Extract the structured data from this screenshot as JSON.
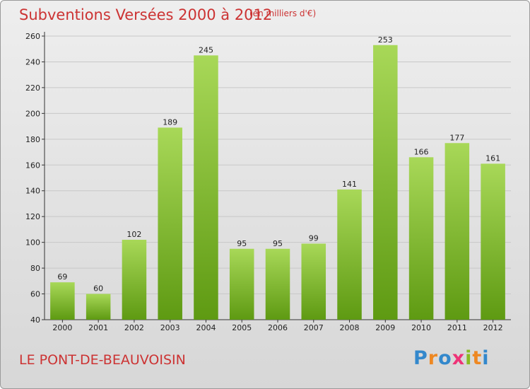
{
  "title": "Subventions Versées 2000 à 2012",
  "unit_note": "(en milliers d'€)",
  "commune": "LE PONT-DE-BEAUVOISIN",
  "logo": {
    "text": "Proxiti",
    "letters": [
      {
        "ch": "P",
        "color": "#3388cc"
      },
      {
        "ch": "r",
        "color": "#ee8822"
      },
      {
        "ch": "o",
        "color": "#3388cc"
      },
      {
        "ch": "x",
        "color": "#ee3377"
      },
      {
        "ch": "i",
        "color": "#88bb22"
      },
      {
        "ch": "t",
        "color": "#ee8822"
      },
      {
        "ch": "i",
        "color": "#3388cc"
      }
    ]
  },
  "colors": {
    "title": "#cc3333",
    "bar_top": "#a8d858",
    "bar_bottom": "#5e9a12",
    "grid": "#c8c8c8"
  },
  "chart_data": {
    "type": "bar",
    "categories": [
      "2000",
      "2001",
      "2002",
      "2003",
      "2004",
      "2005",
      "2006",
      "2007",
      "2008",
      "2009",
      "2010",
      "2011",
      "2012"
    ],
    "values": [
      69,
      60,
      102,
      189,
      245,
      95,
      95,
      99,
      141,
      253,
      166,
      177,
      161
    ],
    "title": "Subventions Versées 2000 à 2012",
    "xlabel": "",
    "ylabel": "",
    "ylim": [
      40,
      260
    ],
    "yticks": [
      40,
      60,
      80,
      100,
      120,
      140,
      160,
      180,
      200,
      220,
      240,
      260
    ],
    "grid": true,
    "legend": "none"
  }
}
